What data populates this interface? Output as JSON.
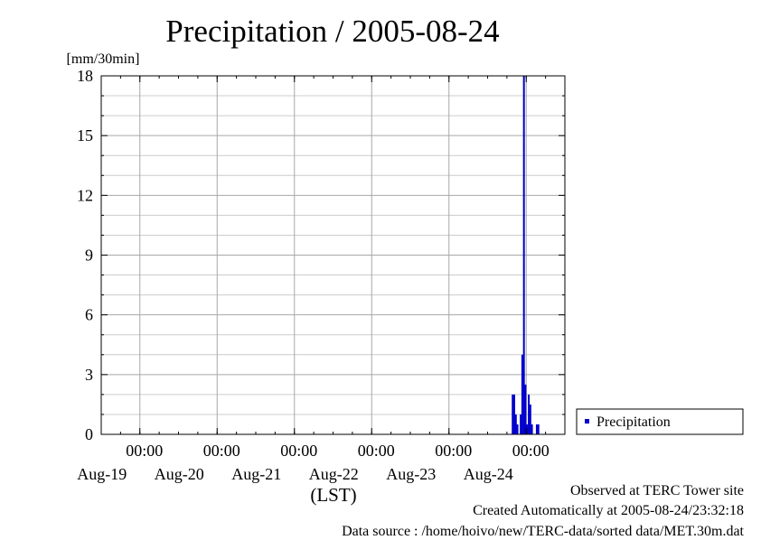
{
  "chart_data": {
    "type": "bar",
    "title": "Precipitation / 2005-08-24",
    "ylabel": "[mm/30min]",
    "xlabel": "(LST)",
    "ylim": [
      0,
      18
    ],
    "yticks": [
      0,
      3,
      6,
      9,
      12,
      15,
      18
    ],
    "xlim": [
      "2005-08-18 12:00",
      "2005-08-24 12:00"
    ],
    "xticks": [
      {
        "x": "2005-08-19 00:00",
        "time": "00:00",
        "date": "Aug-19"
      },
      {
        "x": "2005-08-20 00:00",
        "time": "00:00",
        "date": "Aug-20"
      },
      {
        "x": "2005-08-21 00:00",
        "time": "00:00",
        "date": "Aug-21"
      },
      {
        "x": "2005-08-22 00:00",
        "time": "00:00",
        "date": "Aug-22"
      },
      {
        "x": "2005-08-23 00:00",
        "time": "00:00",
        "date": "Aug-23"
      },
      {
        "x": "2005-08-24 00:00",
        "time": "00:00",
        "date": "Aug-24"
      }
    ],
    "grid": true,
    "legend_position": "right",
    "series": [
      {
        "name": "Precipitation",
        "color": "#0000cc",
        "points": [
          {
            "x": "2005-08-23 19:30",
            "y": 2.0
          },
          {
            "x": "2005-08-23 20:00",
            "y": 2.0
          },
          {
            "x": "2005-08-23 20:30",
            "y": 1.0
          },
          {
            "x": "2005-08-23 21:00",
            "y": 0.5
          },
          {
            "x": "2005-08-23 22:00",
            "y": 1.0
          },
          {
            "x": "2005-08-23 22:30",
            "y": 4.0
          },
          {
            "x": "2005-08-23 23:00",
            "y": 18.0
          },
          {
            "x": "2005-08-23 23:30",
            "y": 2.5
          },
          {
            "x": "2005-08-24 00:00",
            "y": 0.5
          },
          {
            "x": "2005-08-24 00:30",
            "y": 2.0
          },
          {
            "x": "2005-08-24 01:00",
            "y": 1.5
          },
          {
            "x": "2005-08-24 01:30",
            "y": 0.5
          },
          {
            "x": "2005-08-24 03:00",
            "y": 0.5
          },
          {
            "x": "2005-08-24 03:30",
            "y": 0.5
          }
        ]
      }
    ]
  },
  "footer": {
    "observed": "Observed at TERC Tower site",
    "created": "Created Automatically at 2005-08-24/23:32:18",
    "source": "Data source : /home/hoivo/new/TERC-data/sorted  data/MET.30m.dat"
  }
}
